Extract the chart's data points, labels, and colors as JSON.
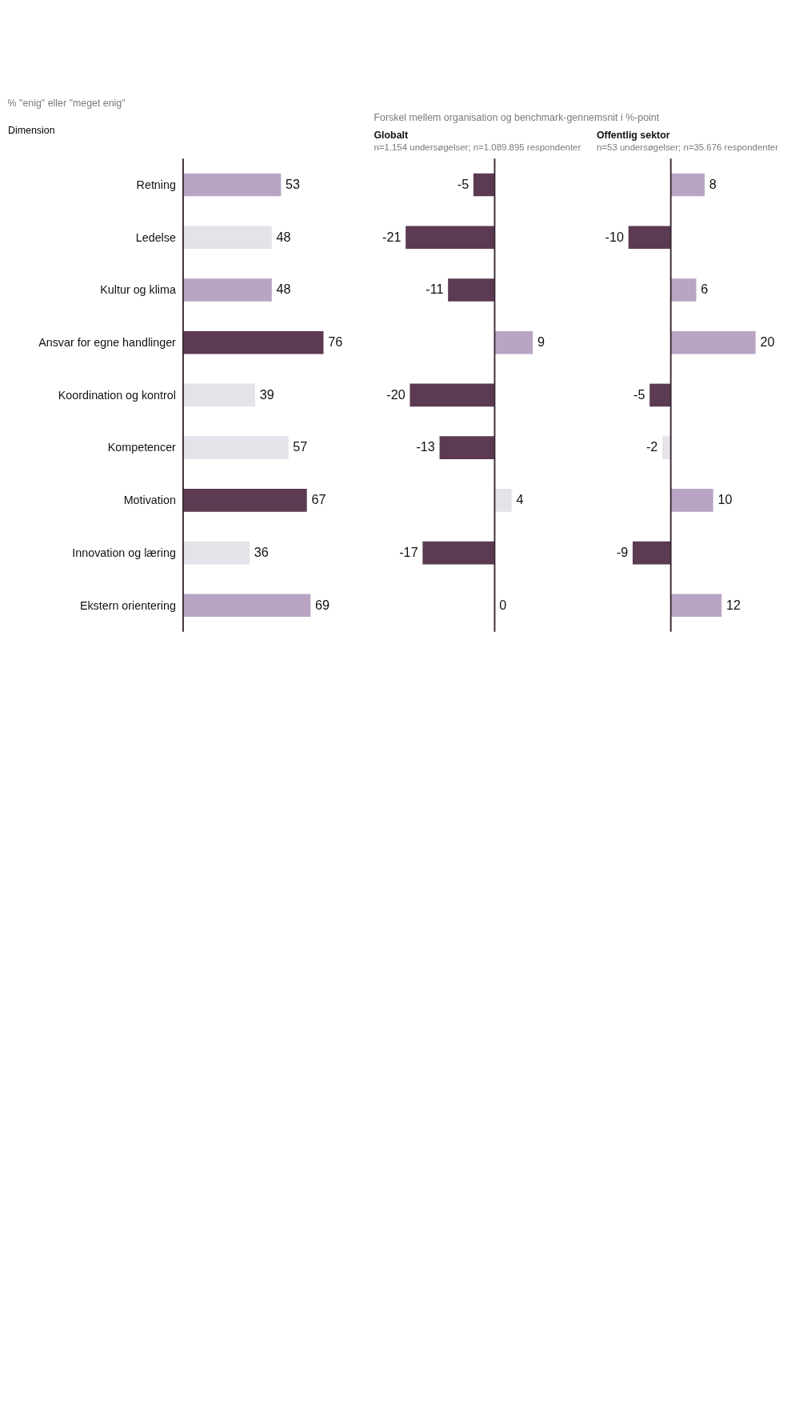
{
  "chart_data": [
    {
      "type": "bar",
      "orientation": "horizontal",
      "title": "% \"enig\" eller \"meget enig\"",
      "ylabel": "Dimension",
      "tick_labels": "y",
      "data_labels": true,
      "categories": [
        "Retning",
        "Ledelse",
        "Kultur og klima",
        "Ansvar for egne handlinger",
        "Koordination og kontrol",
        "Kompetencer",
        "Motivation",
        "Innovation og læring",
        "Ekstern orientering"
      ],
      "values": [
        53,
        48,
        48,
        76,
        39,
        57,
        67,
        36,
        69
      ],
      "colors": [
        "#b9a5c3",
        "#e5e2ea",
        "#b9a5c3",
        "#5b3a52",
        "#e5e2ea",
        "#e5e2ea",
        "#5b3a52",
        "#e5e2ea",
        "#b9a5c3"
      ]
    },
    {
      "type": "bar",
      "orientation": "horizontal",
      "title": "Globalt",
      "subtitle": "n=1.154 undersøgelser; n=1.089.895 respondenter",
      "tick_labels": false,
      "data_labels": true,
      "annotations": [
        "Forskel mellem organisation og benchmark-gennemsnit i %-point"
      ],
      "categories": [
        null,
        null,
        null,
        null,
        null,
        null,
        null,
        null,
        null
      ],
      "values": [
        -5,
        -21,
        -11,
        9,
        -20,
        -13,
        4,
        -17,
        0
      ],
      "colors": [
        "#5b3a52",
        "#5b3a52",
        "#5b3a52",
        "#b9a5c3",
        "#5b3a52",
        "#5b3a52",
        "#e5e2ea",
        "#5b3a52",
        "#b9a5c3"
      ]
    },
    {
      "type": "bar",
      "orientation": "horizontal",
      "title": "Offentlig sektor",
      "subtitle": "n=53 undersøgelser; n=35.676 respondenter",
      "tick_labels": false,
      "data_labels": true,
      "categories": [
        null,
        null,
        null,
        null,
        null,
        null,
        null,
        null,
        null
      ],
      "values": [
        8,
        -10,
        6,
        20,
        -5,
        -2,
        10,
        -9,
        12
      ],
      "colors": [
        "#b9a5c3",
        "#5b3a52",
        "#b9a5c3",
        "#b9a5c3",
        "#5b3a52",
        "#e5e2ea",
        "#b9a5c3",
        "#5b3a52",
        "#b9a5c3"
      ]
    }
  ]
}
